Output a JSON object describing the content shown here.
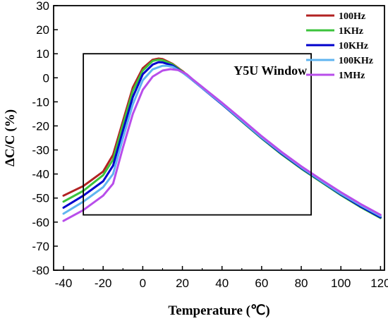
{
  "chart_data": {
    "type": "line",
    "title": "",
    "xlabel": "Temperature (℃)",
    "ylabel": "ΔC/C (%)",
    "xlim": [
      -45,
      122
    ],
    "ylim": [
      -80,
      30
    ],
    "xticks": [
      -40,
      -20,
      0,
      20,
      40,
      60,
      80,
      100,
      120
    ],
    "yticks": [
      -80,
      -70,
      -60,
      -50,
      -40,
      -30,
      -20,
      -10,
      0,
      10,
      20,
      30
    ],
    "xtick_labels": [
      "-40",
      "-20",
      "0",
      "20",
      "40",
      "60",
      "80",
      "100",
      "120"
    ],
    "ytick_labels": [
      "-80",
      "-70",
      "-60",
      "-50",
      "-40",
      "-30",
      "-20",
      "-10",
      "0",
      "10",
      "20",
      "30"
    ],
    "grid": false,
    "legend_position": "top-right",
    "annotation": {
      "label": "Y5U Window",
      "x_range": [
        -30,
        85
      ],
      "y_range": [
        -57,
        10
      ]
    },
    "series": [
      {
        "name": "100Hz",
        "color": "#b22222",
        "x": [
          -40,
          -30,
          -20,
          -15,
          -10,
          -5,
          0,
          5,
          8,
          10,
          15,
          20,
          25,
          30,
          40,
          50,
          60,
          70,
          80,
          90,
          100,
          110,
          120
        ],
        "y": [
          -49,
          -45,
          -39,
          -32,
          -18,
          -4,
          4,
          7.5,
          8,
          7.8,
          5.8,
          2.8,
          -0.6,
          -4,
          -10.8,
          -18,
          -25,
          -31.5,
          -37.5,
          -43,
          -48.5,
          -53.5,
          -58
        ]
      },
      {
        "name": "1KHz",
        "color": "#3cc33c",
        "x": [
          -40,
          -30,
          -20,
          -15,
          -10,
          -5,
          0,
          5,
          8,
          10,
          15,
          20,
          25,
          30,
          40,
          50,
          60,
          70,
          80,
          90,
          100,
          110,
          120
        ],
        "y": [
          -51.5,
          -47,
          -40.5,
          -34,
          -19.5,
          -5.5,
          3,
          7,
          7.5,
          7.3,
          5.6,
          2.6,
          -0.8,
          -4.2,
          -11,
          -18.2,
          -25.2,
          -31.8,
          -37.8,
          -43.3,
          -48.8,
          -53.8,
          -58.3
        ]
      },
      {
        "name": "10KHz",
        "color": "#0000cc",
        "x": [
          -40,
          -30,
          -20,
          -15,
          -10,
          -5,
          0,
          5,
          8,
          10,
          15,
          20,
          25,
          30,
          40,
          50,
          60,
          70,
          80,
          90,
          100,
          110,
          120
        ],
        "y": [
          -54,
          -49,
          -43,
          -36.5,
          -22,
          -8,
          1.5,
          5.5,
          6.5,
          6.4,
          5.1,
          2.3,
          -0.9,
          -4.3,
          -11,
          -18,
          -25,
          -31.5,
          -37.5,
          -43,
          -48.5,
          -53.5,
          -58
        ]
      },
      {
        "name": "100KHz",
        "color": "#5fb4f0",
        "x": [
          -40,
          -30,
          -20,
          -15,
          -10,
          -5,
          0,
          5,
          10,
          12,
          15,
          20,
          25,
          30,
          40,
          50,
          60,
          70,
          80,
          90,
          100,
          110,
          120
        ],
        "y": [
          -56.5,
          -51.5,
          -45.5,
          -40,
          -25,
          -11,
          -1,
          3.5,
          5,
          5,
          4.6,
          2.2,
          -0.8,
          -4.2,
          -10.8,
          -17.8,
          -24.8,
          -31.2,
          -37.2,
          -42.8,
          -48.2,
          -53,
          -57.5
        ]
      },
      {
        "name": "1MHz",
        "color": "#b84dea",
        "x": [
          -40,
          -30,
          -20,
          -15,
          -10,
          -5,
          0,
          5,
          10,
          14,
          18,
          22,
          25,
          30,
          40,
          50,
          60,
          70,
          80,
          90,
          100,
          110,
          120
        ],
        "y": [
          -59.5,
          -55,
          -49,
          -44,
          -29,
          -15,
          -5,
          0.5,
          3,
          3.6,
          3.2,
          1.6,
          -0.5,
          -3.8,
          -10.4,
          -17.3,
          -24.3,
          -30.8,
          -36.8,
          -42.3,
          -47.6,
          -52.5,
          -57
        ]
      }
    ]
  }
}
